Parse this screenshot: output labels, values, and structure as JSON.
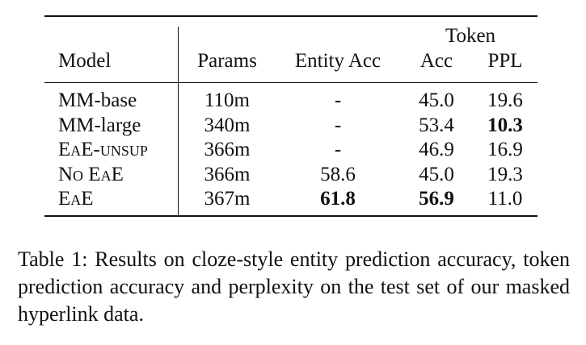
{
  "table": {
    "group_header": "Token",
    "columns": [
      "Model",
      "Params",
      "Entity Acc",
      "Acc",
      "PPL"
    ],
    "rows": [
      [
        "MM-base",
        "110m",
        "-",
        "45.0",
        "19.6"
      ],
      [
        "MM-large",
        "340m",
        "-",
        "53.4",
        "10.3"
      ],
      [
        "EaE-unsup",
        "366m",
        "-",
        "46.9",
        "16.9"
      ],
      [
        "No EaE",
        "366m",
        "58.6",
        "45.0",
        "19.3"
      ],
      [
        "EaE",
        "367m",
        "61.8",
        "56.9",
        "11.0"
      ]
    ],
    "bold": [
      [
        1,
        4
      ],
      [
        4,
        2
      ],
      [
        4,
        3
      ]
    ]
  },
  "caption": "Table 1: Results on cloze-style entity prediction accuracy, token prediction accuracy and perplexity on the test set of our masked hyperlink data."
}
